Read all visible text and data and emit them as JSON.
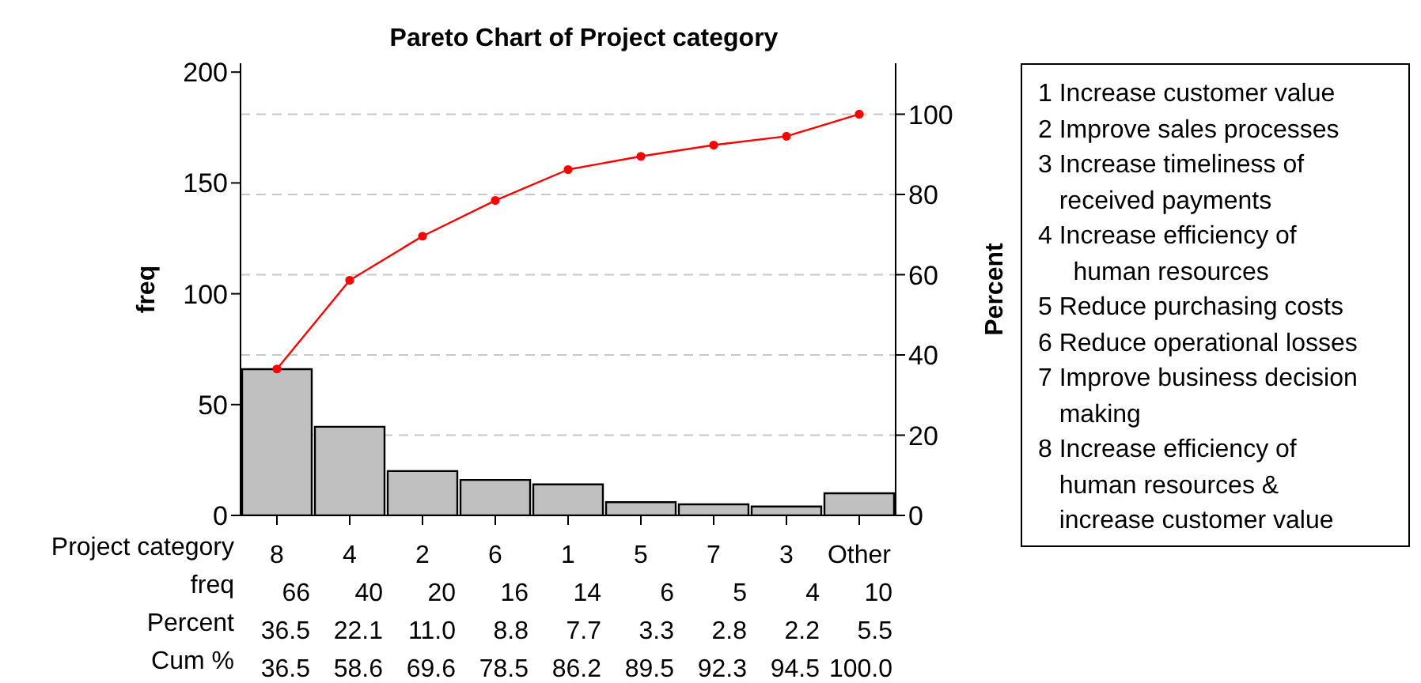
{
  "chart_data": {
    "type": "bar",
    "title": "Pareto Chart of Project category",
    "xlabel": "Project category",
    "ylabel": "freq",
    "y2label": "Percent",
    "categories": [
      "8",
      "4",
      "2",
      "6",
      "1",
      "5",
      "7",
      "3",
      "Other"
    ],
    "series": [
      {
        "name": "freq",
        "color": "#c0c0c0",
        "values": [
          66,
          40,
          20,
          16,
          14,
          6,
          5,
          4,
          10
        ]
      },
      {
        "type": "line",
        "axis": "y2",
        "color": "#ff0000",
        "values": [
          36.5,
          58.6,
          69.6,
          78.5,
          86.2,
          89.5,
          92.3,
          94.5,
          100.0
        ],
        "value_labels": [
          "36.5",
          "58.6",
          "69.6",
          "78.5",
          "86.2",
          "89.5",
          "92.3",
          "94.5",
          "100.0"
        ]
      }
    ],
    "ylim": [
      0,
      204
    ],
    "yticks": [
      0,
      50,
      100,
      150,
      200
    ],
    "y2lim": [
      0,
      112.7
    ],
    "y2ticks": [
      0,
      20,
      40,
      60,
      80,
      100
    ],
    "grid": "y",
    "marker": "circle",
    "line_style": "solid",
    "data_labels": true,
    "annotations": [
      "Percent",
      "Cum %",
      "1 Increase customer value\n2 Improve sales processes\n3 Increase timeliness of\n   received payments\n4 Increase efficiency of\n     human resources\n5 Reduce purchasing costs\n6 Reduce operational losses\n7 Improve business decision\n   making\n8 Increase efficiency of\n   human resources &\n   increase customer value",
      "36.5",
      "22.1",
      "11.0",
      "8.8",
      "7.7",
      "3.3",
      "2.8",
      "2.2",
      "5.5"
    ]
  }
}
